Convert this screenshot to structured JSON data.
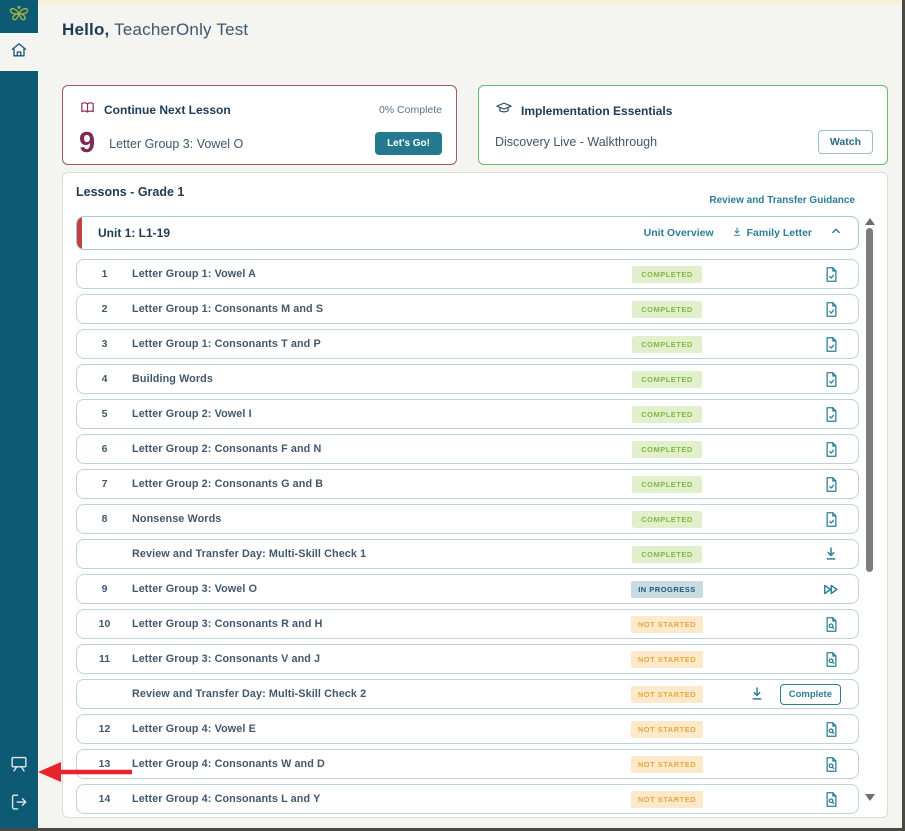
{
  "sidebar": {
    "logo_icon": "butterfly-logo",
    "nav": [
      {
        "label": "home",
        "active": true
      }
    ],
    "bottom_icons": [
      "presentation-icon",
      "logout-icon"
    ]
  },
  "header": {
    "greeting_bold": "Hello,",
    "greeting_name": " TeacherOnly Test"
  },
  "cards": {
    "next_lesson": {
      "title": "Continue Next Lesson",
      "progress": "0% Complete",
      "lesson_number": "9",
      "lesson_title": "Letter Group 3: Vowel O",
      "cta": "Let's Go!"
    },
    "essentials": {
      "title": "Implementation Essentials",
      "item": "Discovery Live - Walkthrough",
      "cta": "Watch"
    }
  },
  "lessons": {
    "heading": "Lessons - Grade 1",
    "guidance_link": "Review and Transfer Guidance",
    "unit": {
      "title": "Unit 1: L1-19",
      "overview_link": "Unit Overview",
      "family_letter_link": "Family Letter"
    },
    "statuses": {
      "completed": "COMPLETED",
      "in_progress": "IN PROGRESS",
      "not_started": "NOT STARTED"
    },
    "complete_button": "Complete",
    "rows": [
      {
        "num": "1",
        "title": "Letter Group 1: Vowel A",
        "status": "completed",
        "icon": "doc-check"
      },
      {
        "num": "2",
        "title": "Letter Group 1: Consonants M and S",
        "status": "completed",
        "icon": "doc-check"
      },
      {
        "num": "3",
        "title": "Letter Group 1: Consonants T and P",
        "status": "completed",
        "icon": "doc-check"
      },
      {
        "num": "4",
        "title": "Building Words",
        "status": "completed",
        "icon": "doc-check"
      },
      {
        "num": "5",
        "title": "Letter Group 2: Vowel I",
        "status": "completed",
        "icon": "doc-check"
      },
      {
        "num": "6",
        "title": "Letter Group 2: Consonants F and N",
        "status": "completed",
        "icon": "doc-check"
      },
      {
        "num": "7",
        "title": "Letter Group 2: Consonants G and B",
        "status": "completed",
        "icon": "doc-check"
      },
      {
        "num": "8",
        "title": "Nonsense Words",
        "status": "completed",
        "icon": "doc-check"
      },
      {
        "num": "",
        "title": "Review and Transfer Day: Multi-Skill Check 1",
        "status": "completed",
        "icon": "download"
      },
      {
        "num": "9",
        "title": "Letter Group 3: Vowel O",
        "status": "in_progress",
        "icon": "fast-forward"
      },
      {
        "num": "10",
        "title": "Letter Group 3: Consonants R and H",
        "status": "not_started",
        "icon": "doc-search"
      },
      {
        "num": "11",
        "title": "Letter Group 3: Consonants V and J",
        "status": "not_started",
        "icon": "doc-search"
      },
      {
        "num": "",
        "title": "Review and Transfer Day: Multi-Skill Check 2",
        "status": "not_started",
        "icon": "download",
        "has_complete_button": true
      },
      {
        "num": "12",
        "title": "Letter Group 4: Vowel E",
        "status": "not_started",
        "icon": "doc-search"
      },
      {
        "num": "13",
        "title": "Letter Group 4: Consonants W and D",
        "status": "not_started",
        "icon": "doc-search"
      },
      {
        "num": "14",
        "title": "Letter Group 4: Consonants L and Y",
        "status": "not_started",
        "icon": "doc-search"
      }
    ]
  },
  "annotation": {
    "type": "arrow-pointing-left",
    "color": "#e8232a"
  },
  "colors": {
    "sidebar": "#0d5a74",
    "teal_accent": "#2c7e95",
    "maroon_accent": "#7c2b56",
    "next_lesson_border": "#a05672",
    "essentials_border": "#67bb6c",
    "completed_bg": "#e2efcd",
    "completed_text": "#82b93e",
    "in_progress_bg": "#c8dae2",
    "in_progress_text": "#1b5a73",
    "not_started_bg": "#fce9c9",
    "not_started_text": "#eca63e",
    "top_strip": "#f9f1dd",
    "page_bg": "#f4f4f1"
  }
}
